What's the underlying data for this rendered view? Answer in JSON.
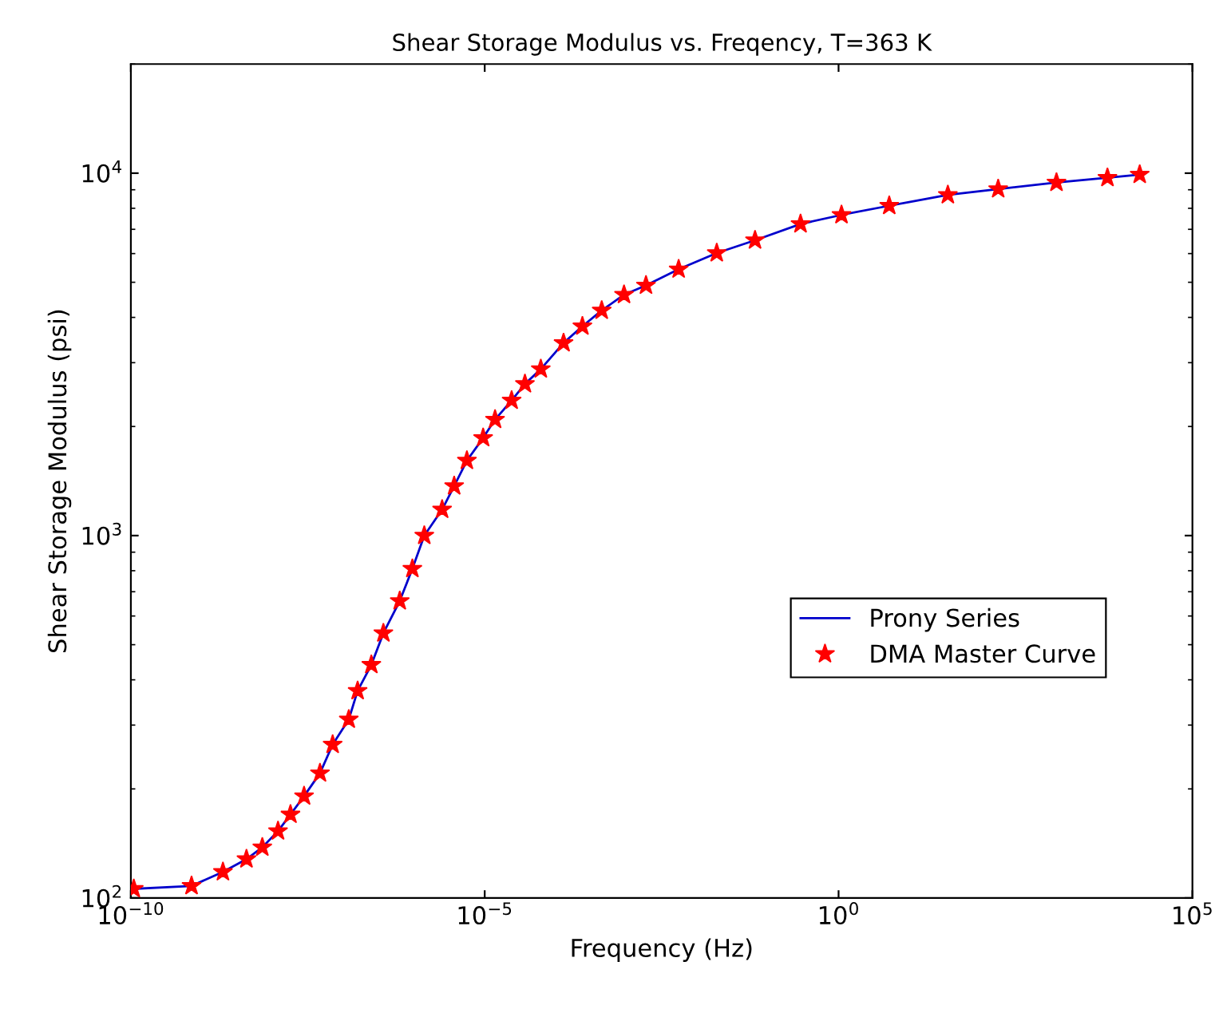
{
  "chart_data": {
    "type": "line",
    "title": "Shear Storage Modulus vs. Freqency, T=363 K",
    "xlabel": "Frequency (Hz)",
    "ylabel": "Shear Storage Modulus (psi)",
    "log": "xy",
    "xlim": [
      1e-10,
      100000
    ],
    "ylim": [
      100,
      20000
    ],
    "xticks": [
      {
        "value": 1e-10,
        "label": "10$^{−10}$"
      },
      {
        "value": 1e-05,
        "label": "10$^{−5}$"
      },
      {
        "value": 1,
        "label": "10$^{0}$"
      },
      {
        "value": 100000,
        "label": "10$^{5}$"
      }
    ],
    "yticks": [
      {
        "value": 100,
        "label": "10$^{2}$"
      },
      {
        "value": 1000,
        "label": "10$^{3}$"
      },
      {
        "value": 10000,
        "label": "10$^{4}$"
      }
    ],
    "grid": false,
    "legend": "lower right",
    "series": [
      {
        "name": "Prony Series",
        "color": "#0000cc",
        "marker": "none",
        "x": [
          1.1e-10,
          7.2e-10,
          2e-09,
          4.3e-09,
          7.2e-09,
          1.2e-08,
          1.8e-08,
          2.8e-08,
          4.7e-08,
          7.1e-08,
          1.2e-07,
          1.6e-07,
          2.5e-07,
          3.7e-07,
          6.3e-07,
          9.5e-07,
          1.4e-06,
          2.5e-06,
          3.7e-06,
          5.6e-06,
          9.5e-06,
          1.4e-05,
          2.4e-05,
          3.7e-05,
          6.2e-05,
          0.00013,
          0.00024,
          0.00045,
          0.00093,
          0.0019,
          0.0055,
          0.019,
          0.066,
          0.29,
          1.1,
          5.2,
          35,
          180,
          1200,
          6300,
          18000
        ],
        "values": [
          106,
          108,
          118,
          128,
          138,
          153,
          170,
          191,
          221,
          265,
          311,
          373,
          440,
          538,
          660,
          810,
          1000,
          1180,
          1370,
          1610,
          1860,
          2090,
          2360,
          2620,
          2880,
          3400,
          3780,
          4180,
          4620,
          4900,
          5430,
          6020,
          6530,
          7240,
          7670,
          8130,
          8710,
          9040,
          9420,
          9710,
          9910
        ]
      },
      {
        "name": "DMA Master Curve",
        "type": "scatter",
        "color": "#ff0000",
        "marker": "star",
        "x": [
          1.1e-10,
          7.2e-10,
          2e-09,
          4.3e-09,
          7.2e-09,
          1.2e-08,
          1.8e-08,
          2.8e-08,
          4.7e-08,
          7.1e-08,
          1.2e-07,
          1.6e-07,
          2.5e-07,
          3.7e-07,
          6.3e-07,
          9.5e-07,
          1.4e-06,
          2.5e-06,
          3.7e-06,
          5.6e-06,
          9.5e-06,
          1.4e-05,
          2.4e-05,
          3.7e-05,
          6.2e-05,
          0.00013,
          0.00024,
          0.00045,
          0.00093,
          0.0019,
          0.0055,
          0.019,
          0.066,
          0.29,
          1.1,
          5.2,
          35,
          180,
          1200,
          6300,
          18000
        ],
        "values": [
          106,
          108,
          118,
          128,
          138,
          153,
          170,
          191,
          221,
          265,
          311,
          373,
          440,
          538,
          660,
          810,
          1000,
          1180,
          1370,
          1610,
          1860,
          2090,
          2360,
          2620,
          2880,
          3400,
          3780,
          4180,
          4620,
          4900,
          5430,
          6020,
          6530,
          7240,
          7670,
          8130,
          8710,
          9040,
          9420,
          9710,
          9910
        ]
      }
    ]
  }
}
